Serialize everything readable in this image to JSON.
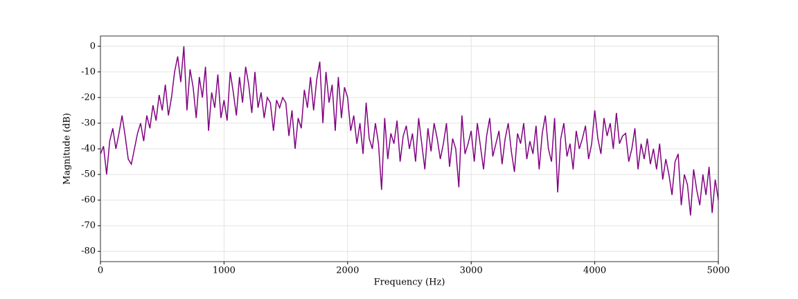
{
  "chart_data": {
    "type": "line",
    "x_label": "Frequency (Hz)",
    "y_label": "Magnitude (dB)",
    "xlim": [
      0,
      5000
    ],
    "ylim": [
      -84,
      4
    ],
    "xticks": [
      0,
      1000,
      2000,
      3000,
      4000,
      5000
    ],
    "yticks": [
      0,
      -10,
      -20,
      -30,
      -40,
      -50,
      -60,
      -70,
      -80
    ],
    "grid": true,
    "x": [
      0,
      25,
      50,
      75,
      100,
      125,
      150,
      175,
      200,
      225,
      250,
      275,
      300,
      325,
      350,
      375,
      400,
      425,
      450,
      475,
      500,
      525,
      550,
      575,
      600,
      625,
      650,
      675,
      700,
      725,
      750,
      775,
      800,
      825,
      850,
      875,
      900,
      925,
      950,
      975,
      1000,
      1025,
      1050,
      1075,
      1100,
      1125,
      1150,
      1175,
      1200,
      1225,
      1250,
      1275,
      1300,
      1325,
      1350,
      1375,
      1400,
      1425,
      1450,
      1475,
      1500,
      1525,
      1550,
      1575,
      1600,
      1625,
      1650,
      1675,
      1700,
      1725,
      1750,
      1775,
      1800,
      1825,
      1850,
      1875,
      1900,
      1925,
      1950,
      1975,
      2000,
      2025,
      2050,
      2075,
      2100,
      2125,
      2150,
      2175,
      2200,
      2225,
      2250,
      2275,
      2300,
      2325,
      2350,
      2375,
      2400,
      2425,
      2450,
      2475,
      2500,
      2525,
      2550,
      2575,
      2600,
      2625,
      2650,
      2675,
      2700,
      2725,
      2750,
      2775,
      2800,
      2825,
      2850,
      2875,
      2900,
      2925,
      2950,
      2975,
      3000,
      3025,
      3050,
      3075,
      3100,
      3125,
      3150,
      3175,
      3200,
      3225,
      3250,
      3275,
      3300,
      3325,
      3350,
      3375,
      3400,
      3425,
      3450,
      3475,
      3500,
      3525,
      3550,
      3575,
      3600,
      3625,
      3650,
      3675,
      3700,
      3725,
      3750,
      3775,
      3800,
      3825,
      3850,
      3875,
      3900,
      3925,
      3950,
      3975,
      4000,
      4025,
      4050,
      4075,
      4100,
      4125,
      4150,
      4175,
      4200,
      4225,
      4250,
      4275,
      4300,
      4325,
      4350,
      4375,
      4400,
      4425,
      4450,
      4475,
      4500,
      4525,
      4550,
      4575,
      4600,
      4625,
      4650,
      4675,
      4700,
      4725,
      4750,
      4775,
      4800,
      4825,
      4850,
      4875,
      4900,
      4925,
      4950,
      4975,
      5000
    ],
    "series": [
      {
        "color": "#800080",
        "values": [
          -42,
          -39,
          -50,
          -37,
          -32,
          -40,
          -34,
          -27,
          -35,
          -44,
          -46,
          -40,
          -34,
          -30,
          -37,
          -27,
          -32,
          -23,
          -29,
          -19,
          -25,
          -15,
          -27,
          -20,
          -10,
          -4,
          -14,
          0,
          -25,
          -9,
          -16,
          -28,
          -12,
          -20,
          -8,
          -33,
          -18,
          -24,
          -11,
          -28,
          -21,
          -29,
          -10,
          -18,
          -27,
          -12,
          -22,
          -8,
          -15,
          -26,
          -10,
          -24,
          -18,
          -28,
          -20,
          -22,
          -33,
          -21,
          -24,
          -20,
          -22,
          -35,
          -25,
          -40,
          -28,
          -32,
          -17,
          -24,
          -12,
          -25,
          -13,
          -6,
          -30,
          -10,
          -22,
          -15,
          -33,
          -12,
          -28,
          -16,
          -20,
          -33,
          -27,
          -38,
          -30,
          -42,
          -22,
          -36,
          -40,
          -30,
          -38,
          -56,
          -28,
          -44,
          -34,
          -38,
          -29,
          -45,
          -35,
          -31,
          -40,
          -34,
          -45,
          -28,
          -38,
          -48,
          -32,
          -41,
          -30,
          -36,
          -44,
          -38,
          -30,
          -47,
          -36,
          -40,
          -55,
          -27,
          -42,
          -38,
          -33,
          -45,
          -30,
          -39,
          -48,
          -35,
          -28,
          -43,
          -38,
          -33,
          -46,
          -36,
          -30,
          -41,
          -49,
          -34,
          -38,
          -30,
          -44,
          -37,
          -42,
          -31,
          -48,
          -34,
          -27,
          -40,
          -45,
          -28,
          -57,
          -36,
          -30,
          -43,
          -38,
          -48,
          -33,
          -40,
          -36,
          -31,
          -44,
          -38,
          -25,
          -36,
          -42,
          -28,
          -35,
          -30,
          -40,
          -26,
          -38,
          -35,
          -34,
          -45,
          -40,
          -32,
          -48,
          -38,
          -44,
          -36,
          -46,
          -40,
          -48,
          -38,
          -52,
          -44,
          -50,
          -58,
          -45,
          -42,
          -62,
          -50,
          -54,
          -66,
          -48,
          -56,
          -62,
          -50,
          -58,
          -47,
          -65,
          -52,
          -60
        ]
      }
    ]
  }
}
